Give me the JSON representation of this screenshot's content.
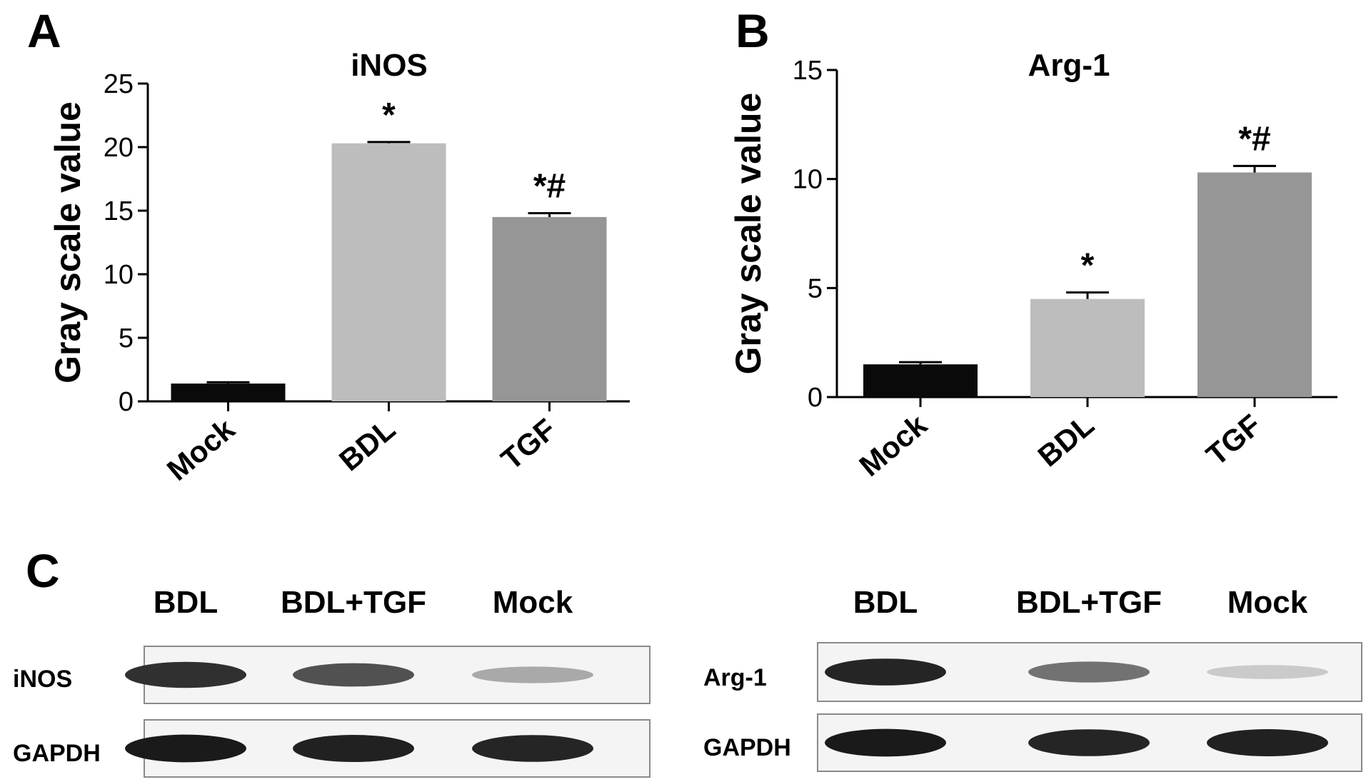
{
  "panels": {
    "a": "A",
    "b": "B",
    "c": "C"
  },
  "chart_data": [
    {
      "type": "bar",
      "title": "iNOS",
      "ylabel": "Gray scale value",
      "xlabel": "",
      "ylim": [
        0,
        25
      ],
      "yticks": [
        "0",
        "5",
        "10",
        "15",
        "20",
        "25"
      ],
      "categories": [
        "Mock",
        "BDL",
        "TGF"
      ],
      "values": [
        1.4,
        20.3,
        14.5
      ],
      "errors": [
        0.1,
        0.1,
        0.3
      ],
      "annotations": [
        "",
        "*",
        "*#"
      ],
      "colors": [
        "#0a0a0a",
        "#bdbdbd",
        "#969696"
      ],
      "grid": false
    },
    {
      "type": "bar",
      "title": "Arg-1",
      "ylabel": "Gray scale value",
      "xlabel": "",
      "ylim": [
        0,
        15
      ],
      "yticks": [
        "0",
        "5",
        "10",
        "15"
      ],
      "categories": [
        "Mock",
        "BDL",
        "TGF"
      ],
      "values": [
        1.5,
        4.5,
        10.3
      ],
      "errors": [
        0.1,
        0.3,
        0.3
      ],
      "annotations": [
        "",
        "*",
        "*#"
      ],
      "colors": [
        "#0a0a0a",
        "#bdbdbd",
        "#969696"
      ],
      "grid": false
    }
  ],
  "blots": [
    {
      "lanes": [
        "BDL",
        "BDL+TGF",
        "Mock"
      ],
      "rows": [
        "iNOS",
        "GAPDH"
      ],
      "band_intensity": [
        [
          0.85,
          0.7,
          0.3
        ],
        [
          0.95,
          0.92,
          0.9
        ]
      ]
    },
    {
      "lanes": [
        "BDL",
        "BDL+TGF",
        "Mock"
      ],
      "rows": [
        "Arg-1",
        "GAPDH"
      ],
      "band_intensity": [
        [
          0.9,
          0.55,
          0.15
        ],
        [
          0.95,
          0.9,
          0.92
        ]
      ]
    }
  ]
}
